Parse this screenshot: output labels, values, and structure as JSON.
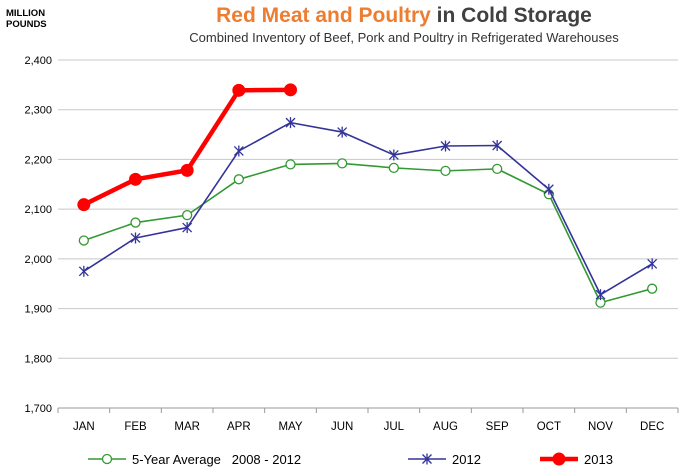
{
  "chart_data": {
    "type": "line",
    "title_parts": [
      {
        "text": "Red Meat and Poultry",
        "color": "#ED7D31"
      },
      {
        "text": " in Cold Storage",
        "color": "#404040"
      }
    ],
    "subtitle": "Combined Inventory of Beef, Pork and Poultry in Refrigerated Warehouses",
    "ylabel_lines": [
      "MILLION",
      "POUNDS"
    ],
    "xlabel": "",
    "categories": [
      "JAN",
      "FEB",
      "MAR",
      "APR",
      "MAY",
      "JUN",
      "JUL",
      "AUG",
      "SEP",
      "OCT",
      "NOV",
      "DEC"
    ],
    "ylim": [
      1700,
      2400
    ],
    "yticks": [
      1700,
      1800,
      1900,
      2000,
      2100,
      2200,
      2300,
      2400
    ],
    "ytick_labels": [
      "1,700",
      "1,800",
      "1,900",
      "2,000",
      "2,100",
      "2,200",
      "2,300",
      "2,400"
    ],
    "grid": true,
    "legend_position": "bottom",
    "series": [
      {
        "name": "5-Year Average   2008 - 2012",
        "color": "#339933",
        "marker": "open-circle",
        "values": [
          2037,
          2073,
          2088,
          2160,
          2190,
          2192,
          2183,
          2177,
          2181,
          2130,
          1912,
          1940
        ]
      },
      {
        "name": "2012",
        "color": "#333399",
        "marker": "asterisk",
        "values": [
          1975,
          2042,
          2063,
          2217,
          2274,
          2255,
          2209,
          2227,
          2228,
          2140,
          1928,
          1990
        ]
      },
      {
        "name": "2013",
        "color": "#FF0000",
        "marker": "filled-circle",
        "values": [
          2109,
          2160,
          2178,
          2339,
          2340,
          null,
          null,
          null,
          null,
          null,
          null,
          null
        ]
      }
    ]
  }
}
